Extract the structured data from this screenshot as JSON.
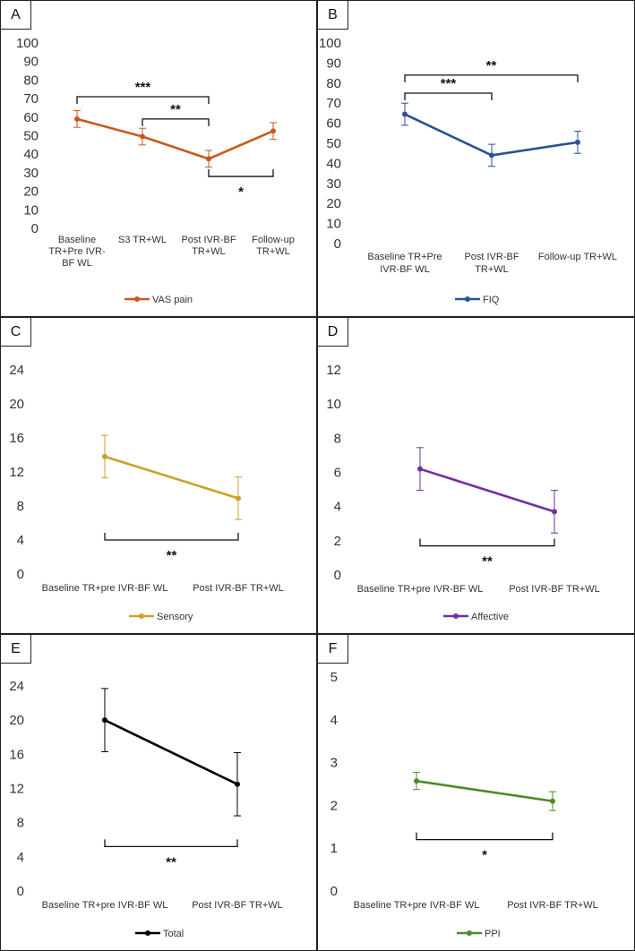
{
  "chart_data": [
    {
      "panel": "A",
      "type": "line",
      "color": "#c65a1e",
      "categories": [
        "Baseline TR+Pre IVR-BF WL",
        "S3 TR+WL",
        "Post IVR-BF TR+WL",
        "Follow-up TR+WL"
      ],
      "category_lines": [
        [
          "Baseline",
          "TR+Pre IVR-",
          "BF WL"
        ],
        [
          "S3 TR+WL"
        ],
        [
          "Post IVR-BF",
          "TR+WL"
        ],
        [
          "Follow-up",
          "TR+WL"
        ]
      ],
      "series": [
        {
          "name": "VAS pain",
          "values": [
            59,
            49.5,
            37.5,
            52.5
          ],
          "errors": [
            4.5,
            4.5,
            4.5,
            4.5
          ]
        }
      ],
      "ylim": [
        0,
        100
      ],
      "yticks": [
        0,
        10,
        20,
        30,
        40,
        50,
        60,
        70,
        80,
        90,
        100
      ],
      "brackets": [
        {
          "from": 0,
          "to": 2,
          "level": 71,
          "dir": "down",
          "label": "***"
        },
        {
          "from": 1,
          "to": 2,
          "level": 59,
          "dir": "down",
          "label": "**"
        },
        {
          "from": 2,
          "to": 3,
          "level": 28,
          "dir": "up",
          "label": "*"
        }
      ],
      "legend": "VAS pain",
      "legend_position": "bottom"
    },
    {
      "panel": "B",
      "type": "line",
      "color": "#2a5296",
      "categories": [
        "Baseline TR+Pre IVR-BF WL",
        "Post IVR-BF TR+WL",
        "Follow-up TR+WL"
      ],
      "category_lines": [
        [
          "Baseline TR+Pre",
          "IVR-BF WL"
        ],
        [
          "Post IVR-BF",
          "TR+WL"
        ],
        [
          "Follow-up TR+WL"
        ]
      ],
      "series": [
        {
          "name": "FIQ",
          "values": [
            64.5,
            44,
            50.5
          ],
          "errors": [
            5.5,
            5.5,
            5.5
          ]
        }
      ],
      "ylim": [
        0,
        100
      ],
      "yticks": [
        0,
        10,
        20,
        30,
        40,
        50,
        60,
        70,
        80,
        90,
        100
      ],
      "brackets": [
        {
          "from": 0,
          "to": 2,
          "level": 84,
          "dir": "down",
          "label": "**"
        },
        {
          "from": 0,
          "to": 1,
          "level": 75,
          "dir": "down",
          "label": "***"
        }
      ],
      "legend": "FIQ",
      "legend_position": "bottom"
    },
    {
      "panel": "C",
      "type": "line",
      "color": "#c9a227",
      "categories": [
        "Baseline TR+pre IVR-BF WL",
        "Post IVR-BF TR+WL"
      ],
      "category_lines": [
        [
          "Baseline TR+pre IVR-BF WL"
        ],
        [
          "Post IVR-BF TR+WL"
        ]
      ],
      "series": [
        {
          "name": "Sensory",
          "values": [
            13.8,
            8.9
          ],
          "errors": [
            2.5,
            2.5
          ]
        }
      ],
      "ylim": [
        0,
        24
      ],
      "yticks": [
        0,
        4,
        8,
        12,
        16,
        20,
        24
      ],
      "brackets": [
        {
          "from": 0,
          "to": 1,
          "level": 4,
          "dir": "up",
          "label": "**"
        }
      ],
      "legend": "Sensory",
      "legend_position": "bottom"
    },
    {
      "panel": "D",
      "type": "line",
      "color": "#7030a0",
      "categories": [
        "Baseline TR+pre IVR-BF WL",
        "Post IVR-BF TR+WL"
      ],
      "category_lines": [
        [
          "Baseline TR+pre IVR-BF WL"
        ],
        [
          "Post IVR-BF TR+WL"
        ]
      ],
      "series": [
        {
          "name": "Affective",
          "values": [
            6.2,
            3.7
          ],
          "errors": [
            1.25,
            1.25
          ]
        }
      ],
      "ylim": [
        0,
        12
      ],
      "yticks": [
        0,
        2,
        4,
        6,
        8,
        10,
        12
      ],
      "brackets": [
        {
          "from": 0,
          "to": 1,
          "level": 1.7,
          "dir": "up",
          "label": "**"
        }
      ],
      "legend": "Affective",
      "legend_position": "bottom"
    },
    {
      "panel": "E",
      "type": "line",
      "color": "#000000",
      "categories": [
        "Baseline TR+pre IVR-BF WL",
        "Post IVR-BF TR+WL"
      ],
      "category_lines": [
        [
          "Baseline TR+pre IVR-BF WL"
        ],
        [
          "Post IVR-BF TR+WL"
        ]
      ],
      "series": [
        {
          "name": "Total",
          "values": [
            20,
            12.5
          ],
          "errors": [
            3.7,
            3.7
          ]
        }
      ],
      "ylim": [
        0,
        24
      ],
      "yticks": [
        0,
        4,
        8,
        12,
        16,
        20,
        24
      ],
      "brackets": [
        {
          "from": 0,
          "to": 1,
          "level": 5.2,
          "dir": "up",
          "label": "**"
        }
      ],
      "legend": "Total",
      "legend_position": "bottom"
    },
    {
      "panel": "F",
      "type": "line",
      "color": "#4e8a2a",
      "categories": [
        "Baseline TR+pre IVR-BF WL",
        "Post IVR-BF TR+WL"
      ],
      "category_lines": [
        [
          "Baseline TR+pre IVR-BF WL"
        ],
        [
          "Post IVR-BF TR+WL"
        ]
      ],
      "series": [
        {
          "name": "PPI",
          "values": [
            2.57,
            2.1
          ],
          "errors": [
            0.2,
            0.22
          ]
        }
      ],
      "ylim": [
        0,
        5
      ],
      "yticks": [
        0,
        1,
        2,
        3,
        4,
        5
      ],
      "brackets": [
        {
          "from": 0,
          "to": 1,
          "level": 1.2,
          "dir": "up",
          "label": "*"
        }
      ],
      "legend": "PPI",
      "legend_position": "bottom"
    }
  ]
}
